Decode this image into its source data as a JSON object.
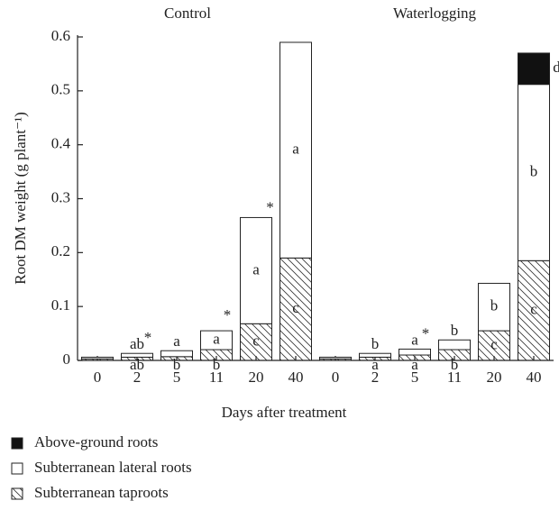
{
  "chart_data": {
    "type": "stacked_bar",
    "groups": [
      "Control",
      "Waterlogging"
    ],
    "categories": [
      "0",
      "2",
      "5",
      "11",
      "20",
      "40",
      "0",
      "2",
      "5",
      "11",
      "20",
      "40"
    ],
    "series": [
      {
        "name": "Above-ground roots",
        "color": "#111111",
        "values": [
          0,
          0,
          0,
          0,
          0,
          0,
          0,
          0,
          0,
          0,
          0,
          0.058
        ]
      },
      {
        "name": "Subterranean lateral roots",
        "color": "#ffffff",
        "values": [
          0.003,
          0.007,
          0.011,
          0.035,
          0.197,
          0.4,
          0.003,
          0.007,
          0.011,
          0.018,
          0.088,
          0.327
        ]
      },
      {
        "name": "Subterranean taproots",
        "color": "#ffffff",
        "hatch": true,
        "values": [
          0.003,
          0.006,
          0.007,
          0.02,
          0.068,
          0.19,
          0.003,
          0.006,
          0.01,
          0.02,
          0.055,
          0.185
        ]
      }
    ],
    "segment_labels": [
      [
        null,
        null,
        null,
        null,
        null,
        null,
        null,
        null,
        null,
        null,
        null,
        "d"
      ],
      [
        null,
        "ab",
        "a",
        "a",
        "a",
        "a",
        null,
        "b",
        "a",
        "b",
        "b",
        "b"
      ],
      [
        null,
        "ab",
        "b",
        "b",
        "c",
        "c",
        null,
        "a",
        "a",
        "b",
        "c",
        "c"
      ]
    ],
    "significance": [
      null,
      "*",
      null,
      "*",
      "*",
      null,
      null,
      null,
      "*",
      null,
      null,
      null
    ],
    "xlabel": "Days after treatment",
    "ylabel": "Root DM weight (g plant⁻¹)",
    "ylim": [
      0,
      0.6
    ],
    "yticks": [
      0,
      0.1,
      0.2,
      0.3,
      0.4,
      0.5,
      0.6
    ]
  }
}
